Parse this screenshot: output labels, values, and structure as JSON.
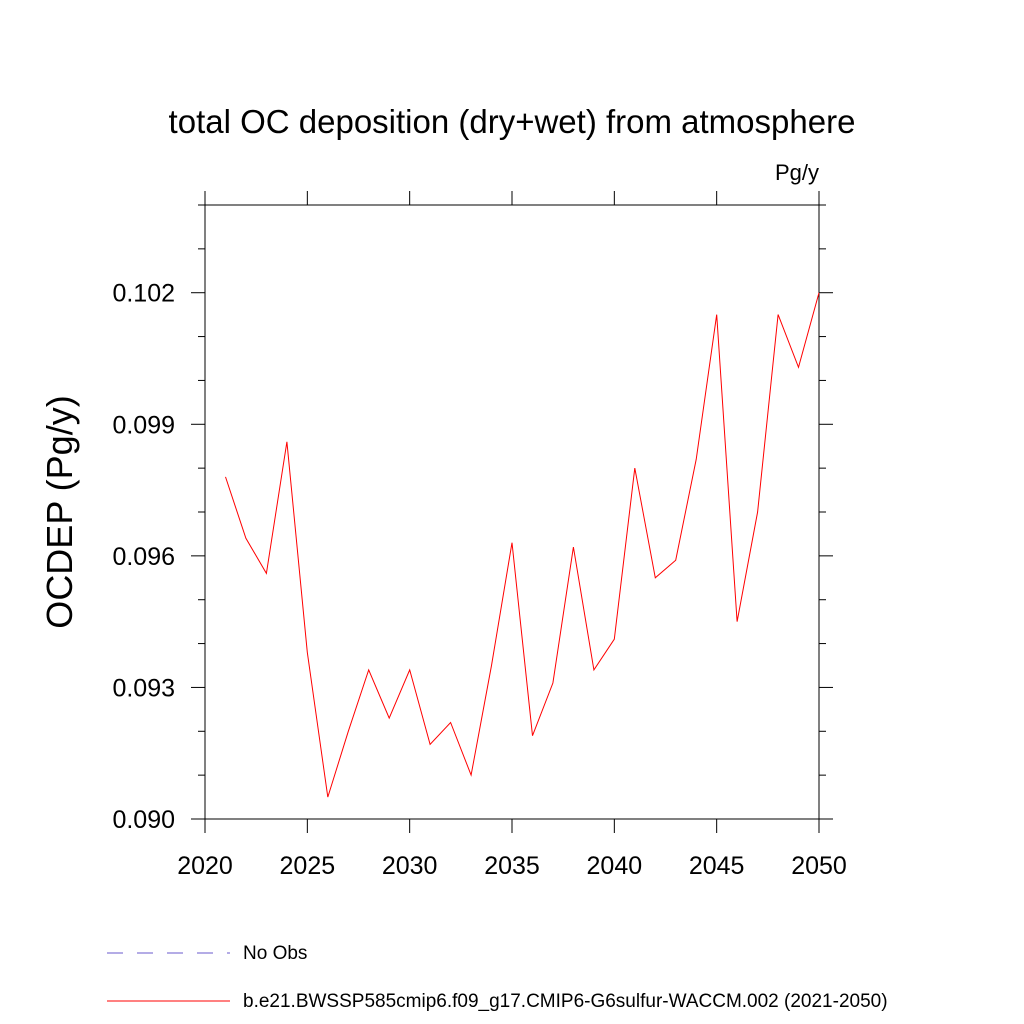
{
  "chart_data": {
    "type": "line",
    "title": "total OC deposition (dry+wet) from atmosphere",
    "units_label": "Pg/y",
    "ylabel": "OCDEP  (Pg/y)",
    "xlabel": "",
    "xlim": [
      2020,
      2050
    ],
    "ylim": [
      0.09,
      0.104
    ],
    "x_ticks": [
      2020,
      2025,
      2030,
      2035,
      2040,
      2045,
      2050
    ],
    "x_tick_labels": [
      "2020",
      "2025",
      "2030",
      "2035",
      "2040",
      "2045",
      "2050"
    ],
    "y_ticks": [
      0.09,
      0.093,
      0.096,
      0.099,
      0.102
    ],
    "y_tick_labels": [
      "0.090",
      "0.093",
      "0.096",
      "0.099",
      "0.102"
    ],
    "grid": false,
    "legend_position": "bottom",
    "series": [
      {
        "name": "b.e21.BWSSP585cmip6.f09_g17.CMIP6-G6sulfur-WACCM.002 (2021-2050)",
        "color": "#ff0000",
        "style": "solid",
        "x": [
          2021,
          2022,
          2023,
          2024,
          2025,
          2026,
          2027,
          2028,
          2029,
          2030,
          2031,
          2032,
          2033,
          2034,
          2035,
          2036,
          2037,
          2038,
          2039,
          2040,
          2041,
          2042,
          2043,
          2044,
          2045,
          2046,
          2047,
          2048,
          2049,
          2050
        ],
        "values": [
          0.0978,
          0.0964,
          0.0956,
          0.0986,
          0.0938,
          0.0905,
          0.092,
          0.0934,
          0.0923,
          0.0934,
          0.0917,
          0.0922,
          0.091,
          0.0935,
          0.0963,
          0.0919,
          0.0931,
          0.0962,
          0.0934,
          0.0941,
          0.098,
          0.0955,
          0.0959,
          0.0982,
          0.1015,
          0.0945,
          0.097,
          0.1015,
          0.1003,
          0.102
        ]
      }
    ],
    "legend": [
      {
        "label": "No Obs",
        "color": "#6a5acd",
        "style": "dashed"
      },
      {
        "label": "b.e21.BWSSP585cmip6.f09_g17.CMIP6-G6sulfur-WACCM.002 (2021-2050)",
        "color": "#ff0000",
        "style": "solid"
      }
    ]
  }
}
